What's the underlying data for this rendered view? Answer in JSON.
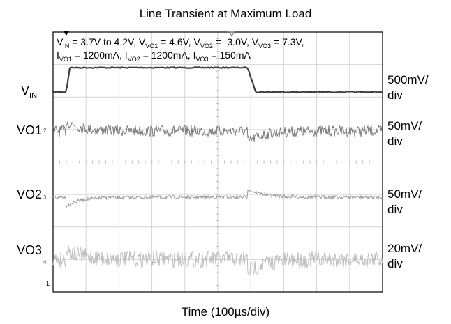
{
  "chart_data": {
    "type": "line",
    "title": "Line Transient at Maximum Load",
    "xlabel": "Time (100µs/div)",
    "divisions": {
      "x": 10,
      "y": 8
    },
    "conditions": [
      {
        "name": "V",
        "sub": "IN",
        "eq": " = 3.7V to 4.2V, "
      },
      {
        "name": "V",
        "sub": "VO1",
        "eq": " = 4.6V, "
      },
      {
        "name": "V",
        "sub": "VO2",
        "eq": " = -3.0V, "
      },
      {
        "name": "V",
        "sub": "VO3",
        "eq": " = 7.3V,"
      },
      {
        "name": "I",
        "sub": "VO1",
        "eq": " = 1200mA, "
      },
      {
        "name": "I",
        "sub": "VO2",
        "eq": " = 1200mA, "
      },
      {
        "name": "I",
        "sub": "VO3",
        "eq": " = 150mA"
      }
    ],
    "step": {
      "from_V": 3.7,
      "to_V": 4.2,
      "rise_div": 0.4,
      "fall_div": 5.9
    },
    "series": [
      {
        "label_main": "V",
        "label_sub": "IN",
        "scale": "500mV/\ndiv",
        "color": "#3c3c3c",
        "marker": ""
      },
      {
        "label_main": "VO1",
        "label_sub": "",
        "scale": "50mV/\ndiv",
        "color": "#777777",
        "marker": "2"
      },
      {
        "label_main": "VO2",
        "label_sub": "",
        "scale": "50mV/\ndiv",
        "color": "#9a9a9a",
        "marker": "3"
      },
      {
        "label_main": "VO3",
        "label_sub": "",
        "scale": "20mV/\ndiv",
        "color": "#bdbdbd",
        "marker": "4"
      }
    ],
    "ground_marker": "1"
  }
}
